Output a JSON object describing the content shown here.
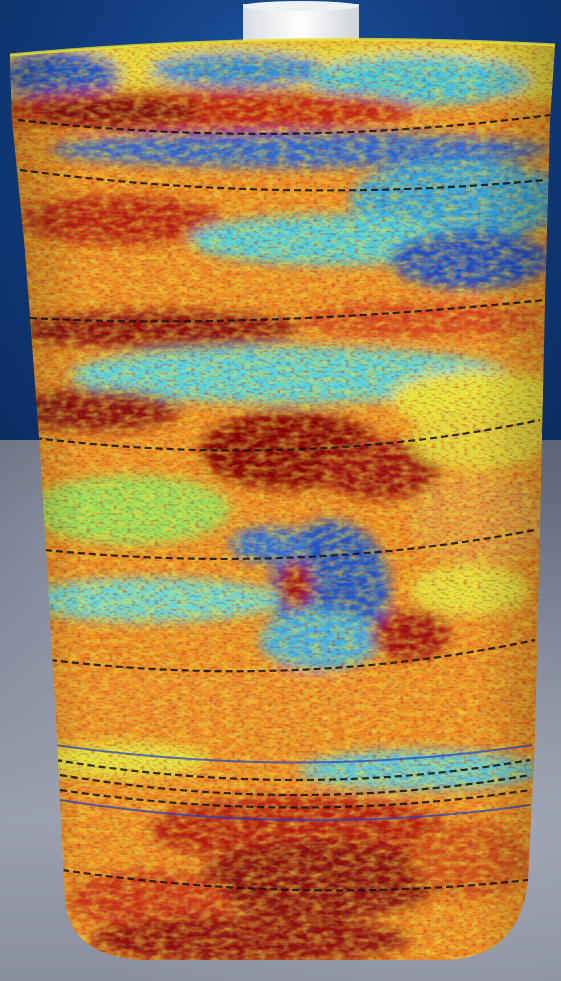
{
  "colors": {
    "background_blue": "#123f82",
    "floor_gray": "#8a8fa0",
    "core_cap": "#f4f6f8",
    "heat_dark_red": "#8b0a0a",
    "heat_red": "#d8261c",
    "heat_orange": "#f08a1c",
    "heat_yellow": "#f2e93a",
    "heat_cyan": "#3fd8e8",
    "heat_blue": "#1240c8",
    "fracture_line": "#111111"
  },
  "icons": [
    "core-sample-image"
  ]
}
